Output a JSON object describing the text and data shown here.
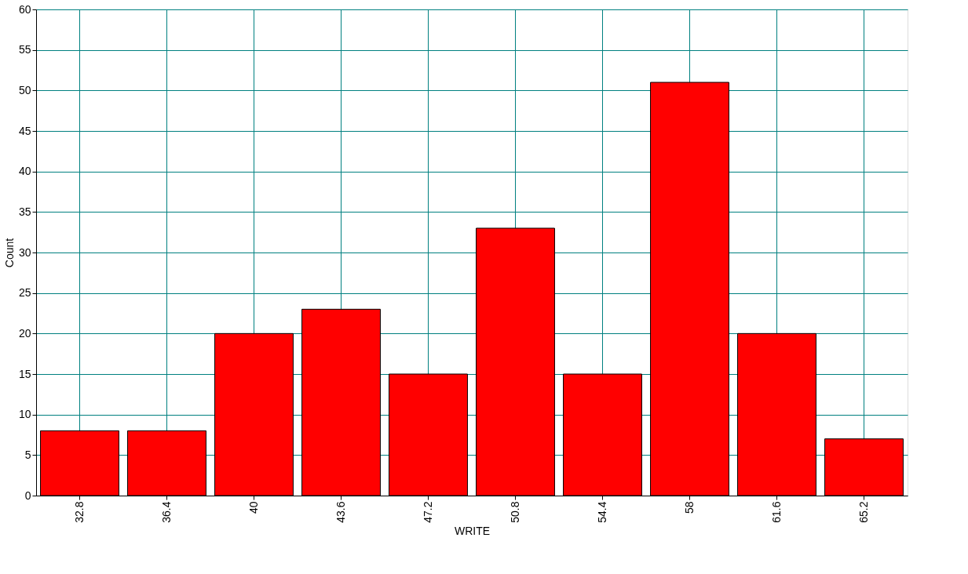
{
  "chart_data": {
    "type": "bar",
    "xlabel": "WRITE",
    "ylabel": "Count",
    "categories": [
      "32.8",
      "36.4",
      "40",
      "43.6",
      "47.2",
      "50.8",
      "54.4",
      "58",
      "61.6",
      "65.2"
    ],
    "values": [
      8,
      8,
      20,
      23,
      15,
      33,
      15,
      51,
      20,
      7
    ],
    "color": "#ff0000",
    "ylim": [
      0,
      60
    ],
    "yticks": [
      0,
      5,
      10,
      15,
      20,
      25,
      30,
      35,
      40,
      45,
      50,
      55,
      60
    ],
    "grid": true
  }
}
